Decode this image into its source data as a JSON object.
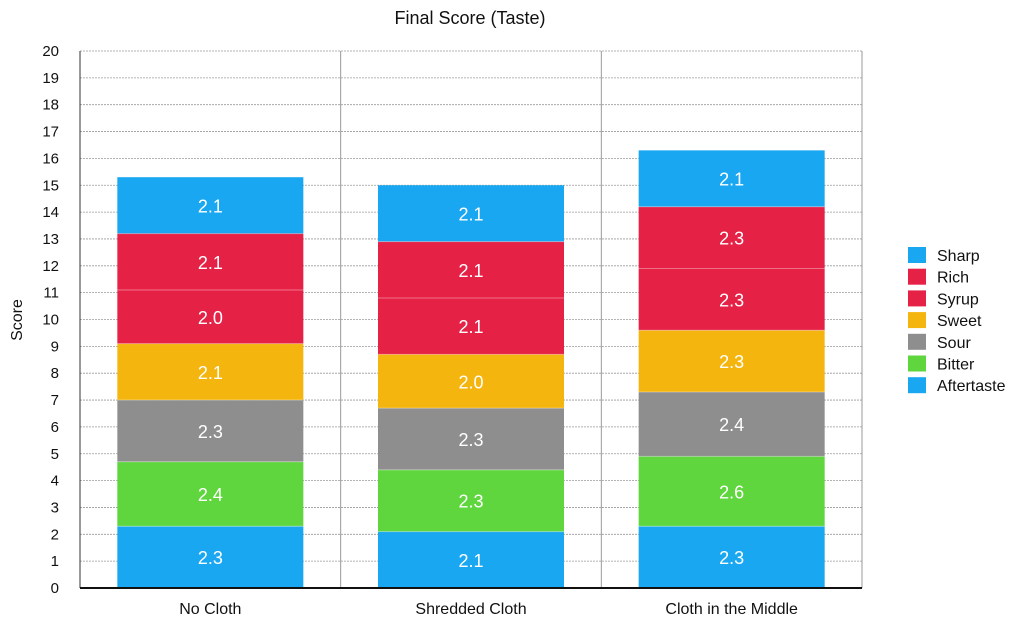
{
  "chart_data": {
    "type": "bar",
    "stacked": true,
    "title": "Final Score (Taste)",
    "xlabel": "",
    "ylabel": "Score",
    "ylim": [
      0,
      20
    ],
    "yticks": [
      0,
      1,
      2,
      3,
      4,
      5,
      6,
      7,
      8,
      9,
      10,
      11,
      12,
      13,
      14,
      15,
      16,
      17,
      18,
      19,
      20
    ],
    "grid": true,
    "legend_position": "right",
    "categories": [
      "No Cloth",
      "Shredded Cloth",
      "Cloth in the Middle"
    ],
    "series": [
      {
        "name": "Aftertaste",
        "color": "#1aa7f2",
        "values": [
          2.3,
          2.1,
          2.3
        ]
      },
      {
        "name": "Bitter",
        "color": "#5fd63d",
        "values": [
          2.4,
          2.3,
          2.6
        ]
      },
      {
        "name": "Sour",
        "color": "#8e8e8e",
        "values": [
          2.3,
          2.3,
          2.4
        ]
      },
      {
        "name": "Sweet",
        "color": "#f5b50f",
        "values": [
          2.1,
          2.0,
          2.3
        ]
      },
      {
        "name": "Syrup",
        "color": "#e62146",
        "values": [
          2.0,
          2.1,
          2.3
        ]
      },
      {
        "name": "Rich",
        "color": "#e62146",
        "values": [
          2.1,
          2.1,
          2.3
        ]
      },
      {
        "name": "Sharp",
        "color": "#1aa7f2",
        "values": [
          2.1,
          2.1,
          2.1
        ]
      }
    ],
    "legend_order": [
      "Sharp",
      "Rich",
      "Syrup",
      "Sweet",
      "Sour",
      "Bitter",
      "Aftertaste"
    ]
  }
}
